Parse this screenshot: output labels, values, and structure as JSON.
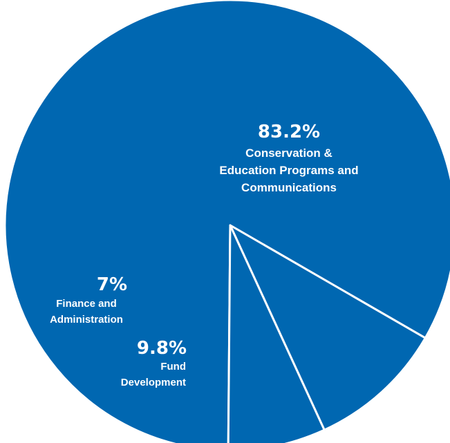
{
  "chart_data": {
    "type": "pie",
    "slices": [
      {
        "percent_label": "83.2%",
        "label_lines": [
          "Conservation &",
          "Education Programs and",
          "Communications"
        ],
        "value": 83.2
      },
      {
        "percent_label": "9.8%",
        "label_lines": [
          "Fund",
          "Development"
        ],
        "value": 9.8
      },
      {
        "percent_label": "7%",
        "label_lines": [
          "Finance and",
          "Administration"
        ],
        "value": 7
      }
    ],
    "colors": {
      "slice_fill": "#0067b1",
      "separator": "#ffffff",
      "text": "#ffffff"
    },
    "legend": "none"
  }
}
